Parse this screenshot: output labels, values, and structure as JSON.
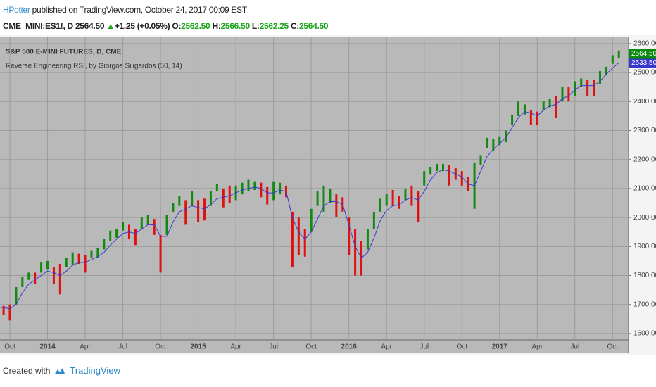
{
  "header": {
    "author": "HPotter",
    "published": "published on TradingView.com, October 24, 2017 00:09 EST",
    "symbol": "CME_MINI:ES1!, D",
    "last": "2564.50",
    "arrow": "▲",
    "change": "+1.25 (+0.05%)",
    "o_label": "O:",
    "open": "2562.50",
    "h_label": "H:",
    "high": "2566.50",
    "l_label": "L:",
    "low": "2562.25",
    "c_label": "C:",
    "close": "2564.50"
  },
  "footer": {
    "created": "Created with",
    "brand": "TradingView"
  },
  "chart_data": {
    "type": "hl_bars",
    "title": "S&P 500 E-MINI FUTURES, D, CME",
    "categories": [
      null,
      null,
      "Oct",
      null,
      null,
      null,
      null,
      null,
      "2014",
      null,
      null,
      null,
      null,
      null,
      "Apr",
      null,
      null,
      null,
      null,
      null,
      "Jul",
      null,
      null,
      null,
      null,
      null,
      "Oct",
      null,
      null,
      null,
      null,
      null,
      "2015",
      null,
      null,
      null,
      null,
      null,
      "Apr",
      null,
      null,
      null,
      null,
      null,
      "Jul",
      null,
      null,
      null,
      null,
      null,
      "Oct",
      null,
      null,
      null,
      null,
      null,
      "2016",
      null,
      null,
      null,
      null,
      null,
      "Apr",
      null,
      null,
      null,
      null,
      null,
      "Jul",
      null,
      null,
      null,
      null,
      null,
      "Oct",
      null,
      null,
      null,
      null,
      null,
      "2017",
      null,
      null,
      null,
      null,
      null,
      "Apr",
      null,
      null,
      null,
      null,
      null,
      "Jul",
      null,
      null,
      null,
      null,
      null,
      "Oct",
      null
    ],
    "high": [
      1710,
      1695,
      1700,
      1760,
      1795,
      1810,
      1810,
      1845,
      1850,
      1830,
      1840,
      1860,
      1880,
      1875,
      1870,
      1885,
      1895,
      1925,
      1955,
      1960,
      1985,
      1975,
      1960,
      2000,
      2010,
      1995,
      1940,
      2010,
      2050,
      2075,
      2060,
      2090,
      2060,
      2065,
      2090,
      2115,
      2100,
      2110,
      2110,
      2120,
      2130,
      2125,
      2120,
      2105,
      2125,
      2120,
      2110,
      2020,
      2000,
      1960,
      2030,
      2090,
      2110,
      2100,
      2080,
      2070,
      2000,
      1960,
      1920,
      1960,
      2020,
      2065,
      2080,
      2095,
      2075,
      2100,
      2110,
      2090,
      2160,
      2175,
      2185,
      2185,
      2180,
      2170,
      2160,
      2140,
      2190,
      2215,
      2275,
      2270,
      2280,
      2300,
      2355,
      2400,
      2390,
      2370,
      2365,
      2400,
      2410,
      2420,
      2450,
      2450,
      2470,
      2480,
      2475,
      2475,
      2505,
      2520,
      2560,
      2576
    ],
    "low": [
      1680,
      1665,
      1645,
      1700,
      1760,
      1785,
      1770,
      1810,
      1820,
      1770,
      1735,
      1830,
      1835,
      1840,
      1810,
      1860,
      1860,
      1890,
      1920,
      1930,
      1955,
      1925,
      1905,
      1960,
      1975,
      1940,
      1810,
      1940,
      2020,
      2040,
      1975,
      2040,
      1985,
      1990,
      2040,
      2090,
      2035,
      2050,
      2060,
      2080,
      2090,
      2095,
      2070,
      2045,
      2060,
      2080,
      2070,
      1830,
      1870,
      1865,
      1950,
      2040,
      2020,
      2050,
      2000,
      2020,
      1870,
      1800,
      1800,
      1890,
      1960,
      2020,
      2040,
      2040,
      2030,
      2060,
      2040,
      1985,
      2110,
      2150,
      2160,
      2160,
      2110,
      2130,
      2110,
      2090,
      2030,
      2180,
      2240,
      2230,
      2250,
      2260,
      2320,
      2350,
      2355,
      2320,
      2320,
      2370,
      2380,
      2345,
      2400,
      2400,
      2420,
      2450,
      2420,
      2420,
      2460,
      2490,
      2530,
      2550
    ],
    "colors": [
      "#128a12",
      "#e01010",
      "#e01010",
      "#128a12",
      "#128a12",
      "#128a12",
      "#e01010",
      "#128a12",
      "#128a12",
      "#e01010",
      "#e01010",
      "#128a12",
      "#128a12",
      "#e01010",
      "#e01010",
      "#128a12",
      "#128a12",
      "#128a12",
      "#128a12",
      "#128a12",
      "#128a12",
      "#e01010",
      "#e01010",
      "#128a12",
      "#128a12",
      "#e01010",
      "#e01010",
      "#128a12",
      "#128a12",
      "#128a12",
      "#e01010",
      "#128a12",
      "#e01010",
      "#e01010",
      "#128a12",
      "#128a12",
      "#e01010",
      "#e01010",
      "#128a12",
      "#128a12",
      "#128a12",
      "#128a12",
      "#e01010",
      "#e01010",
      "#128a12",
      "#128a12",
      "#e01010",
      "#e01010",
      "#e01010",
      "#e01010",
      "#128a12",
      "#128a12",
      "#128a12",
      "#128a12",
      "#e01010",
      "#e01010",
      "#e01010",
      "#e01010",
      "#e01010",
      "#128a12",
      "#128a12",
      "#128a12",
      "#128a12",
      "#e01010",
      "#e01010",
      "#128a12",
      "#e01010",
      "#e01010",
      "#128a12",
      "#128a12",
      "#128a12",
      "#128a12",
      "#e01010",
      "#e01010",
      "#e01010",
      "#e01010",
      "#128a12",
      "#128a12",
      "#128a12",
      "#128a12",
      "#128a12",
      "#128a12",
      "#128a12",
      "#128a12",
      "#128a12",
      "#e01010",
      "#e01010",
      "#128a12",
      "#128a12",
      "#e01010",
      "#128a12",
      "#e01010",
      "#128a12",
      "#128a12",
      "#e01010",
      "#e01010",
      "#128a12",
      "#128a12",
      "#128a12",
      "#128a12"
    ],
    "indicator": {
      "name": "Reverse Engineering RSI, by Giorgos Siligardos (50, 14)",
      "color": "#3838d0",
      "values": [
        1690,
        1690,
        1685,
        1700,
        1740,
        1770,
        1785,
        1800,
        1815,
        1810,
        1800,
        1815,
        1835,
        1845,
        1845,
        1855,
        1865,
        1880,
        1905,
        1925,
        1945,
        1950,
        1945,
        1960,
        1975,
        1975,
        1935,
        1935,
        1985,
        2020,
        2030,
        2040,
        2035,
        2030,
        2045,
        2065,
        2070,
        2075,
        2085,
        2095,
        2100,
        2105,
        2100,
        2085,
        2085,
        2095,
        2090,
        2000,
        1950,
        1925,
        1950,
        1995,
        2040,
        2055,
        2055,
        2045,
        1975,
        1900,
        1860,
        1880,
        1930,
        1990,
        2025,
        2040,
        2045,
        2060,
        2070,
        2060,
        2090,
        2130,
        2155,
        2165,
        2160,
        2150,
        2140,
        2115,
        2110,
        2160,
        2210,
        2235,
        2255,
        2275,
        2310,
        2345,
        2365,
        2360,
        2350,
        2370,
        2385,
        2390,
        2410,
        2420,
        2440,
        2455,
        2455,
        2455,
        2470,
        2495,
        2515,
        2533.5
      ]
    },
    "last_price": {
      "value": 2564.5,
      "label": "2564.50",
      "color": "#0a8a0a"
    },
    "indicator_last": {
      "value": 2533.5,
      "label": "2533.50"
    },
    "ylim": [
      1578,
      2624
    ],
    "yticks": [
      {
        "value": 1600,
        "label": "1600.00"
      },
      {
        "value": 1700,
        "label": "1700.00"
      },
      {
        "value": 1800,
        "label": "1800.00"
      },
      {
        "value": 1900,
        "label": "1900.00"
      },
      {
        "value": 2000,
        "label": "2000.00"
      },
      {
        "value": 2100,
        "label": "2100.00"
      },
      {
        "value": 2200,
        "label": "2200.00"
      },
      {
        "value": 2300,
        "label": "2300.00"
      },
      {
        "value": 2400,
        "label": "2400.00"
      },
      {
        "value": 2500,
        "label": "2500.00"
      },
      {
        "value": 2600,
        "label": "2600.00"
      }
    ],
    "grid": true
  }
}
